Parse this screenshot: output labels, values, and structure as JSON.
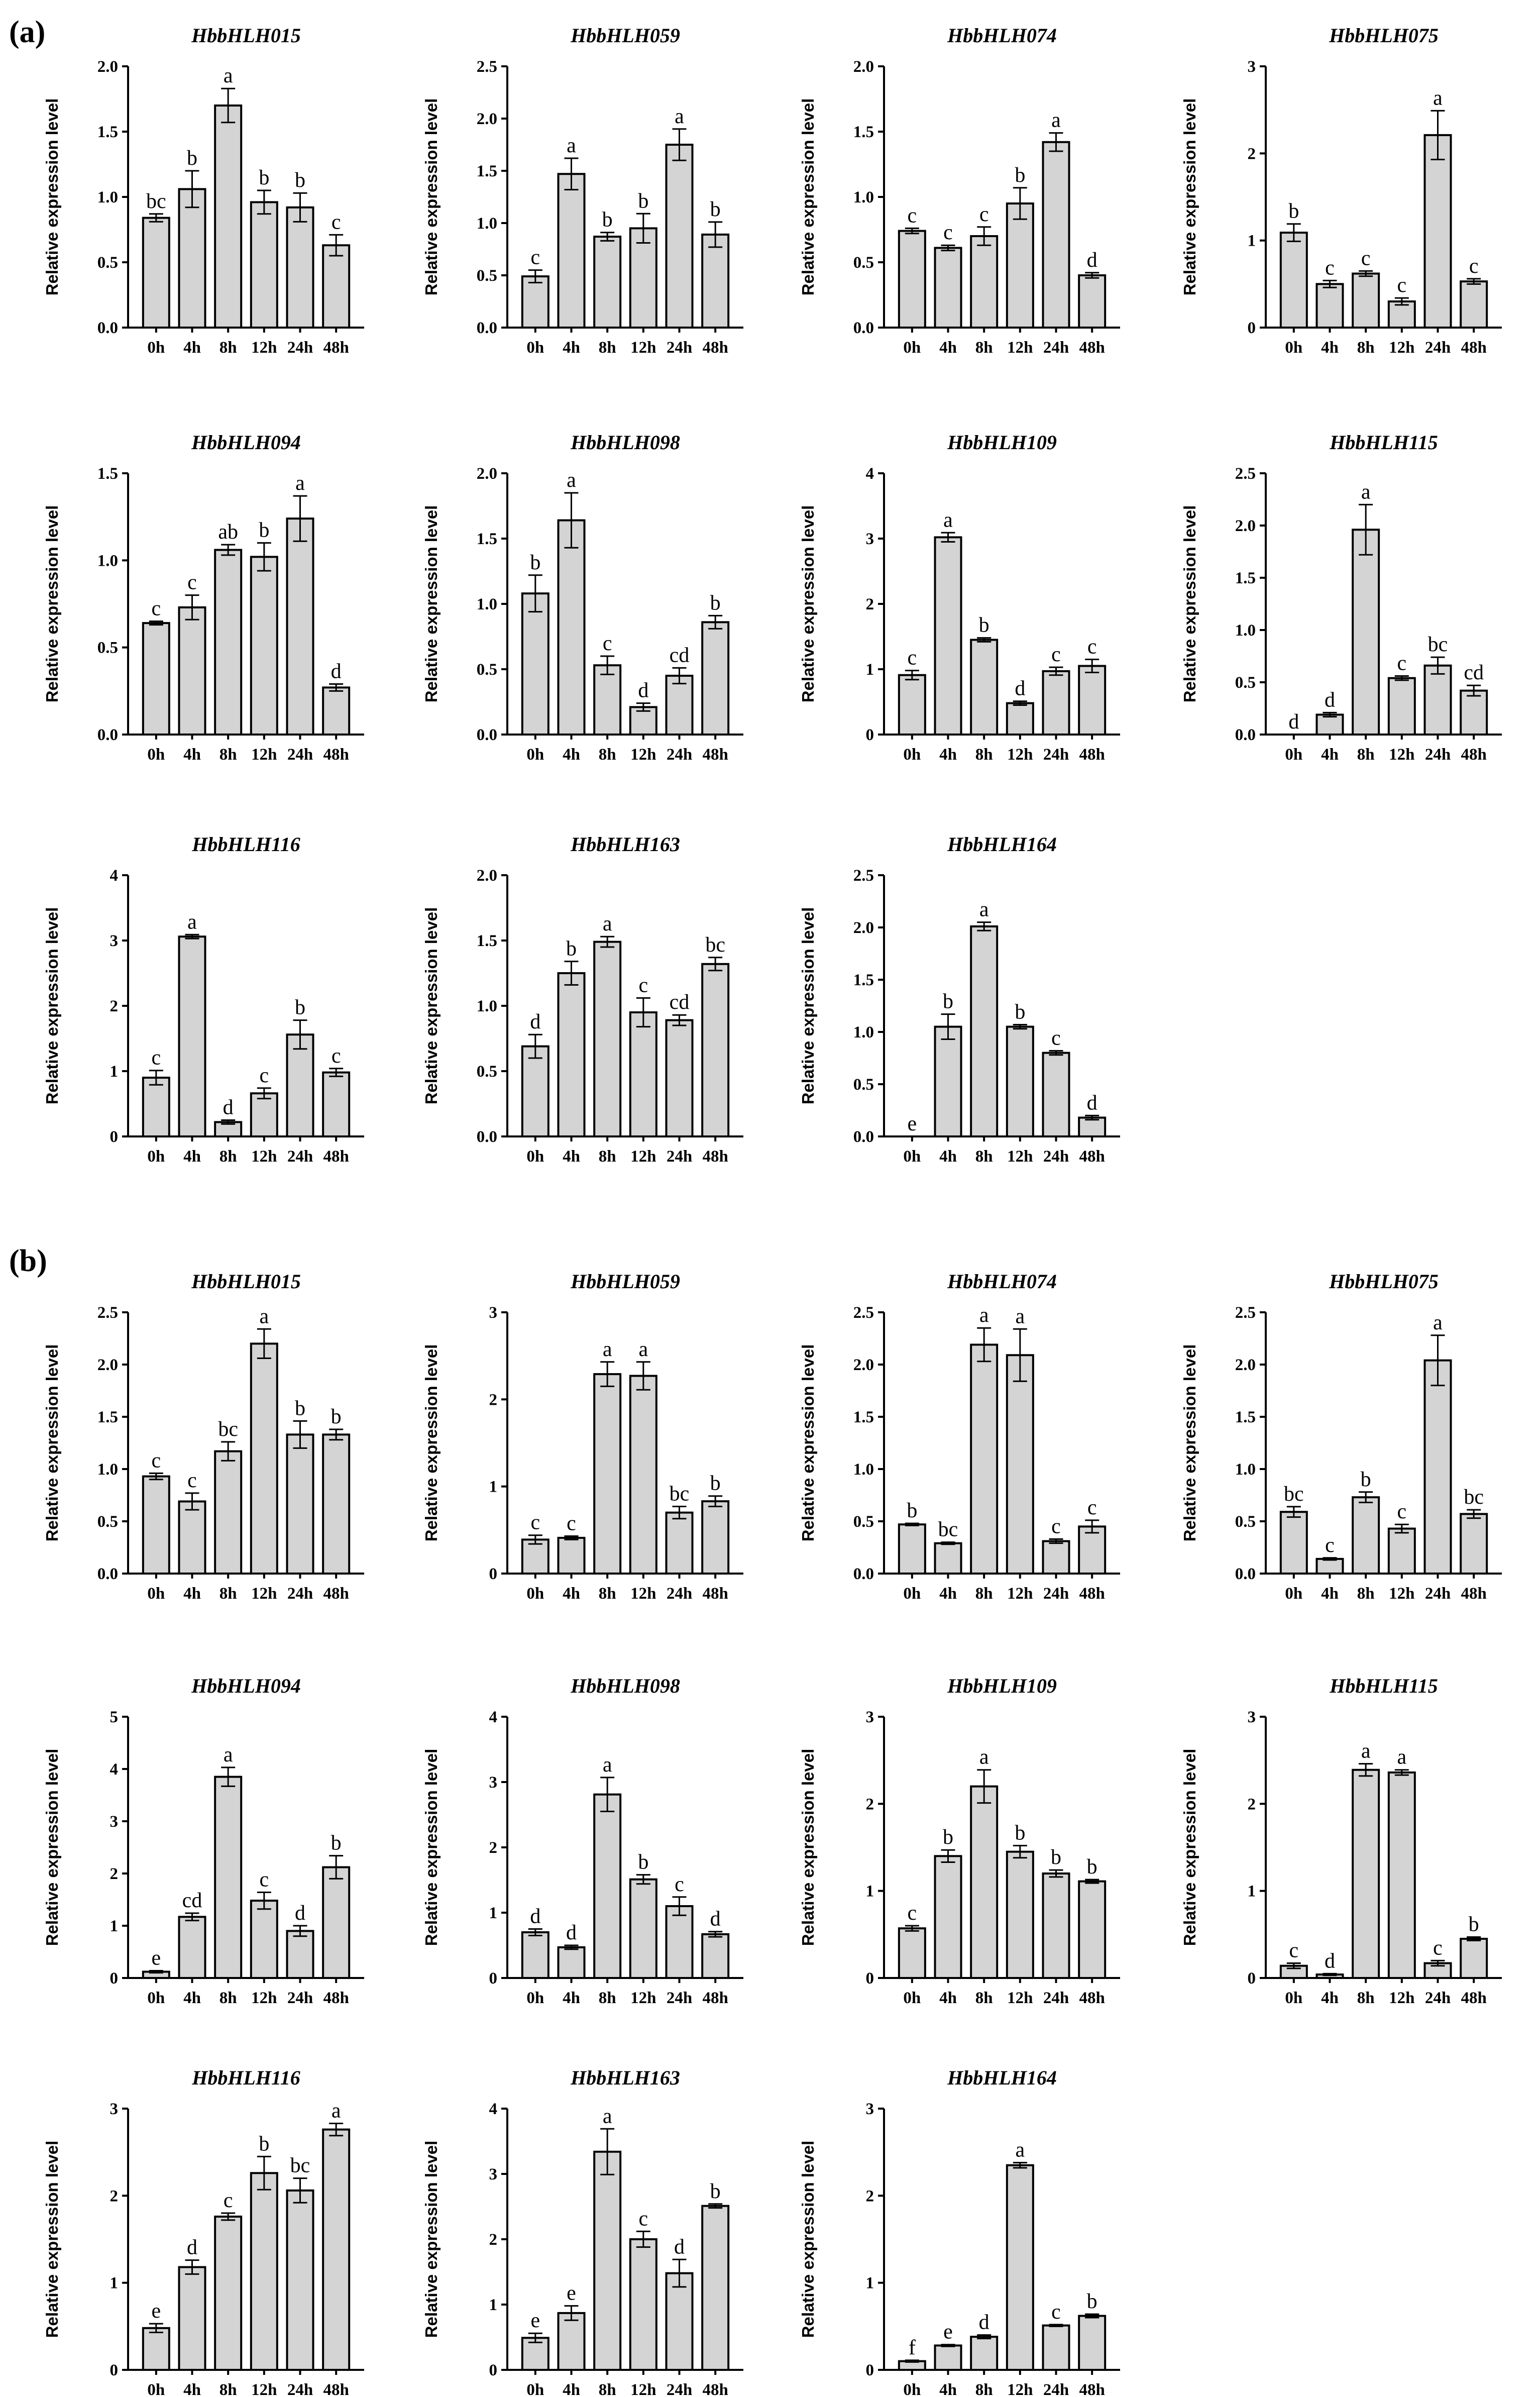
{
  "figure": {
    "panels": [
      {
        "label": "(a)"
      },
      {
        "label": "(b)"
      }
    ],
    "y_axis_title": "Relative expression level",
    "bar_color": "#d4d4d4",
    "categories": [
      "0h",
      "4h",
      "8h",
      "12h",
      "24h",
      "48h"
    ]
  },
  "chart_data": [
    {
      "panel": "(a)",
      "type": "bar",
      "title": "HbbHLH015",
      "ylabel": "Relative expression level",
      "ylim": [
        0,
        2.0
      ],
      "yticks": [
        "0.0",
        "0.5",
        "1.0",
        "1.5",
        "2.0"
      ],
      "categories": [
        "0h",
        "4h",
        "8h",
        "12h",
        "24h",
        "48h"
      ],
      "values": [
        0.84,
        1.06,
        1.7,
        0.96,
        0.92,
        0.63
      ],
      "errors": [
        0.03,
        0.14,
        0.13,
        0.09,
        0.11,
        0.08
      ],
      "labels": [
        "bc",
        "b",
        "a",
        "b",
        "b",
        "c"
      ]
    },
    {
      "panel": "(a)",
      "type": "bar",
      "title": "HbbHLH059",
      "ylabel": "Relative expression level",
      "ylim": [
        0,
        2.5
      ],
      "yticks": [
        "0.0",
        "0.5",
        "1.0",
        "1.5",
        "2.0",
        "2.5"
      ],
      "categories": [
        "0h",
        "4h",
        "8h",
        "12h",
        "24h",
        "48h"
      ],
      "values": [
        0.49,
        1.47,
        0.87,
        0.95,
        1.75,
        0.89
      ],
      "errors": [
        0.06,
        0.15,
        0.04,
        0.14,
        0.15,
        0.12
      ],
      "labels": [
        "c",
        "a",
        "b",
        "b",
        "a",
        "b"
      ]
    },
    {
      "panel": "(a)",
      "type": "bar",
      "title": "HbbHLH074",
      "ylabel": "Relative expression level",
      "ylim": [
        0,
        2.0
      ],
      "yticks": [
        "0.0",
        "0.5",
        "1.0",
        "1.5",
        "2.0"
      ],
      "categories": [
        "0h",
        "4h",
        "8h",
        "12h",
        "24h",
        "48h"
      ],
      "values": [
        0.74,
        0.61,
        0.7,
        0.95,
        1.42,
        0.4
      ],
      "errors": [
        0.02,
        0.02,
        0.07,
        0.12,
        0.07,
        0.02
      ],
      "labels": [
        "c",
        "c",
        "c",
        "b",
        "a",
        "d"
      ]
    },
    {
      "panel": "(a)",
      "type": "bar",
      "title": "HbbHLH075",
      "ylabel": "Relative expression level",
      "ylim": [
        0,
        3
      ],
      "yticks": [
        "0",
        "1",
        "2",
        "3"
      ],
      "categories": [
        "0h",
        "4h",
        "8h",
        "12h",
        "24h",
        "48h"
      ],
      "values": [
        1.09,
        0.5,
        0.62,
        0.3,
        2.21,
        0.53
      ],
      "errors": [
        0.1,
        0.04,
        0.03,
        0.04,
        0.28,
        0.03
      ],
      "labels": [
        "b",
        "c",
        "c",
        "c",
        "a",
        "c"
      ]
    },
    {
      "panel": "(a)",
      "type": "bar",
      "title": "HbbHLH094",
      "ylabel": "Relative expression level",
      "ylim": [
        0,
        1.5
      ],
      "yticks": [
        "0.0",
        "0.5",
        "1.0",
        "1.5"
      ],
      "categories": [
        "0h",
        "4h",
        "8h",
        "12h",
        "24h",
        "48h"
      ],
      "values": [
        0.64,
        0.73,
        1.06,
        1.02,
        1.24,
        0.27
      ],
      "errors": [
        0.01,
        0.07,
        0.03,
        0.08,
        0.13,
        0.02
      ],
      "labels": [
        "c",
        "c",
        "ab",
        "b",
        "a",
        "d"
      ]
    },
    {
      "panel": "(a)",
      "type": "bar",
      "title": "HbbHLH098",
      "ylabel": "Relative expression level",
      "ylim": [
        0,
        2.0
      ],
      "yticks": [
        "0.0",
        "0.5",
        "1.0",
        "1.5",
        "2.0"
      ],
      "categories": [
        "0h",
        "4h",
        "8h",
        "12h",
        "24h",
        "48h"
      ],
      "values": [
        1.08,
        1.64,
        0.53,
        0.21,
        0.45,
        0.86
      ],
      "errors": [
        0.14,
        0.21,
        0.07,
        0.03,
        0.06,
        0.05
      ],
      "labels": [
        "b",
        "a",
        "c",
        "d",
        "cd",
        "b"
      ]
    },
    {
      "panel": "(a)",
      "type": "bar",
      "title": "HbbHLH109",
      "ylabel": "Relative expression level",
      "ylim": [
        0,
        4
      ],
      "yticks": [
        "0",
        "1",
        "2",
        "3",
        "4"
      ],
      "categories": [
        "0h",
        "4h",
        "8h",
        "12h",
        "24h",
        "48h"
      ],
      "values": [
        0.91,
        3.02,
        1.45,
        0.48,
        0.97,
        1.05
      ],
      "errors": [
        0.07,
        0.07,
        0.03,
        0.03,
        0.06,
        0.1
      ],
      "labels": [
        "c",
        "a",
        "b",
        "d",
        "c",
        "c"
      ]
    },
    {
      "panel": "(a)",
      "type": "bar",
      "title": "HbbHLH115",
      "ylabel": "Relative expression level",
      "ylim": [
        0,
        2.5
      ],
      "yticks": [
        "0.0",
        "0.5",
        "1.0",
        "1.5",
        "2.0",
        "2.5"
      ],
      "categories": [
        "0h",
        "4h",
        "8h",
        "12h",
        "24h",
        "48h"
      ],
      "values": [
        0.0,
        0.19,
        1.96,
        0.54,
        0.66,
        0.42
      ],
      "errors": [
        0.0,
        0.02,
        0.24,
        0.02,
        0.08,
        0.05
      ],
      "labels": [
        "d",
        "d",
        "a",
        "c",
        "bc",
        "cd"
      ]
    },
    {
      "panel": "(a)",
      "type": "bar",
      "title": "HbbHLH116",
      "ylabel": "Relative expression level",
      "ylim": [
        0,
        4
      ],
      "yticks": [
        "0",
        "1",
        "2",
        "3",
        "4"
      ],
      "categories": [
        "0h",
        "4h",
        "8h",
        "12h",
        "24h",
        "48h"
      ],
      "values": [
        0.9,
        3.06,
        0.22,
        0.66,
        1.56,
        0.98
      ],
      "errors": [
        0.11,
        0.03,
        0.03,
        0.08,
        0.22,
        0.06
      ],
      "labels": [
        "c",
        "a",
        "d",
        "c",
        "b",
        "c"
      ]
    },
    {
      "panel": "(a)",
      "type": "bar",
      "title": "HbbHLH163",
      "ylabel": "Relative expression level",
      "ylim": [
        0,
        2.0
      ],
      "yticks": [
        "0.0",
        "0.5",
        "1.0",
        "1.5",
        "2.0"
      ],
      "categories": [
        "0h",
        "4h",
        "8h",
        "12h",
        "24h",
        "48h"
      ],
      "values": [
        0.69,
        1.25,
        1.49,
        0.95,
        0.89,
        1.32
      ],
      "errors": [
        0.09,
        0.09,
        0.04,
        0.11,
        0.04,
        0.05
      ],
      "labels": [
        "d",
        "b",
        "a",
        "c",
        "cd",
        "bc"
      ]
    },
    {
      "panel": "(a)",
      "type": "bar",
      "title": "HbbHLH164",
      "ylabel": "Relative expression level",
      "ylim": [
        0,
        2.5
      ],
      "yticks": [
        "0.0",
        "0.5",
        "1.0",
        "1.5",
        "2.0",
        "2.5"
      ],
      "categories": [
        "0h",
        "4h",
        "8h",
        "12h",
        "24h",
        "48h"
      ],
      "values": [
        0.0,
        1.05,
        2.01,
        1.05,
        0.8,
        0.18
      ],
      "errors": [
        0.0,
        0.12,
        0.04,
        0.02,
        0.02,
        0.02
      ],
      "labels": [
        "e",
        "b",
        "a",
        "b",
        "c",
        "d"
      ]
    },
    {
      "panel": "(b)",
      "type": "bar",
      "title": "HbbHLH015",
      "ylabel": "Relative expression level",
      "ylim": [
        0,
        2.5
      ],
      "yticks": [
        "0.0",
        "0.5",
        "1.0",
        "1.5",
        "2.0",
        "2.5"
      ],
      "categories": [
        "0h",
        "4h",
        "8h",
        "12h",
        "24h",
        "48h"
      ],
      "values": [
        0.93,
        0.69,
        1.17,
        2.2,
        1.33,
        1.33
      ],
      "errors": [
        0.03,
        0.08,
        0.09,
        0.14,
        0.13,
        0.05
      ],
      "labels": [
        "c",
        "c",
        "bc",
        "a",
        "b",
        "b"
      ]
    },
    {
      "panel": "(b)",
      "type": "bar",
      "title": "HbbHLH059",
      "ylabel": "Relative expression level",
      "ylim": [
        0,
        3
      ],
      "yticks": [
        "0",
        "1",
        "2",
        "3"
      ],
      "categories": [
        "0h",
        "4h",
        "8h",
        "12h",
        "24h",
        "48h"
      ],
      "values": [
        0.39,
        0.41,
        2.29,
        2.27,
        0.7,
        0.83
      ],
      "errors": [
        0.05,
        0.02,
        0.14,
        0.16,
        0.07,
        0.06
      ],
      "labels": [
        "c",
        "c",
        "a",
        "a",
        "bc",
        "b"
      ]
    },
    {
      "panel": "(b)",
      "type": "bar",
      "title": "HbbHLH074",
      "ylabel": "Relative expression level",
      "ylim": [
        0,
        2.5
      ],
      "yticks": [
        "0.0",
        "0.5",
        "1.0",
        "1.5",
        "2.0",
        "2.5"
      ],
      "categories": [
        "0h",
        "4h",
        "8h",
        "12h",
        "24h",
        "48h"
      ],
      "values": [
        0.47,
        0.29,
        2.19,
        2.09,
        0.31,
        0.45
      ],
      "errors": [
        0.01,
        0.01,
        0.16,
        0.25,
        0.02,
        0.06
      ],
      "labels": [
        "b",
        "bc",
        "a",
        "a",
        "c",
        "c"
      ]
    },
    {
      "panel": "(b)",
      "type": "bar",
      "title": "HbbHLH075",
      "ylabel": "Relative expression level",
      "ylim": [
        0,
        2.5
      ],
      "yticks": [
        "0.0",
        "0.5",
        "1.0",
        "1.5",
        "2.0",
        "2.5"
      ],
      "categories": [
        "0h",
        "4h",
        "8h",
        "12h",
        "24h",
        "48h"
      ],
      "values": [
        0.59,
        0.14,
        0.73,
        0.43,
        2.04,
        0.57
      ],
      "errors": [
        0.05,
        0.01,
        0.05,
        0.04,
        0.24,
        0.04
      ],
      "labels": [
        "bc",
        "c",
        "b",
        "c",
        "a",
        "bc"
      ]
    },
    {
      "panel": "(b)",
      "type": "bar",
      "title": "HbbHLH094",
      "ylabel": "Relative expression level",
      "ylim": [
        0,
        5
      ],
      "yticks": [
        "0",
        "1",
        "2",
        "3",
        "4",
        "5"
      ],
      "categories": [
        "0h",
        "4h",
        "8h",
        "12h",
        "24h",
        "48h"
      ],
      "values": [
        0.12,
        1.17,
        3.85,
        1.48,
        0.9,
        2.12
      ],
      "errors": [
        0.02,
        0.07,
        0.18,
        0.16,
        0.1,
        0.22
      ],
      "labels": [
        "e",
        "cd",
        "a",
        "c",
        "d",
        "b"
      ]
    },
    {
      "panel": "(b)",
      "type": "bar",
      "title": "HbbHLH098",
      "ylabel": "Relative expression level",
      "ylim": [
        0,
        4
      ],
      "yticks": [
        "0",
        "1",
        "2",
        "3",
        "4"
      ],
      "categories": [
        "0h",
        "4h",
        "8h",
        "12h",
        "24h",
        "48h"
      ],
      "values": [
        0.7,
        0.47,
        2.81,
        1.51,
        1.1,
        0.67
      ],
      "errors": [
        0.05,
        0.03,
        0.26,
        0.07,
        0.14,
        0.04
      ],
      "labels": [
        "d",
        "d",
        "a",
        "b",
        "c",
        "d"
      ]
    },
    {
      "panel": "(b)",
      "type": "bar",
      "title": "HbbHLH109",
      "ylabel": "Relative expression level",
      "ylim": [
        0,
        3
      ],
      "yticks": [
        "0",
        "1",
        "2",
        "3"
      ],
      "categories": [
        "0h",
        "4h",
        "8h",
        "12h",
        "24h",
        "48h"
      ],
      "values": [
        0.57,
        1.4,
        2.2,
        1.45,
        1.2,
        1.11
      ],
      "errors": [
        0.03,
        0.07,
        0.19,
        0.07,
        0.04,
        0.02
      ],
      "labels": [
        "c",
        "b",
        "a",
        "b",
        "b",
        "b"
      ]
    },
    {
      "panel": "(b)",
      "type": "bar",
      "title": "HbbHLH115",
      "ylabel": "Relative expression level",
      "ylim": [
        0,
        3
      ],
      "yticks": [
        "0",
        "1",
        "2",
        "3"
      ],
      "categories": [
        "0h",
        "4h",
        "8h",
        "12h",
        "24h",
        "48h"
      ],
      "values": [
        0.14,
        0.04,
        2.39,
        2.36,
        0.17,
        0.45
      ],
      "errors": [
        0.03,
        0.01,
        0.07,
        0.03,
        0.03,
        0.02
      ],
      "labels": [
        "c",
        "d",
        "a",
        "a",
        "c",
        "b"
      ]
    },
    {
      "panel": "(b)",
      "type": "bar",
      "title": "HbbHLH116",
      "ylabel": "Relative expression level",
      "ylim": [
        0,
        3
      ],
      "yticks": [
        "0",
        "1",
        "2",
        "3"
      ],
      "categories": [
        "0h",
        "4h",
        "8h",
        "12h",
        "24h",
        "48h"
      ],
      "values": [
        0.48,
        1.18,
        1.76,
        2.26,
        2.06,
        2.76
      ],
      "errors": [
        0.05,
        0.08,
        0.04,
        0.19,
        0.14,
        0.07
      ],
      "labels": [
        "e",
        "d",
        "c",
        "b",
        "bc",
        "a"
      ]
    },
    {
      "panel": "(b)",
      "type": "bar",
      "title": "HbbHLH163",
      "ylabel": "Relative expression level",
      "ylim": [
        0,
        4
      ],
      "yticks": [
        "0",
        "1",
        "2",
        "3",
        "4"
      ],
      "categories": [
        "0h",
        "4h",
        "8h",
        "12h",
        "24h",
        "48h"
      ],
      "values": [
        0.49,
        0.87,
        3.34,
        2.0,
        1.48,
        2.51
      ],
      "errors": [
        0.07,
        0.11,
        0.35,
        0.12,
        0.21,
        0.03
      ],
      "labels": [
        "e",
        "e",
        "a",
        "c",
        "d",
        "b"
      ]
    },
    {
      "panel": "(b)",
      "type": "bar",
      "title": "HbbHLH164",
      "ylabel": "Relative expression level",
      "ylim": [
        0,
        3
      ],
      "yticks": [
        "0",
        "1",
        "2",
        "3"
      ],
      "categories": [
        "0h",
        "4h",
        "8h",
        "12h",
        "24h",
        "48h"
      ],
      "values": [
        0.1,
        0.28,
        0.38,
        2.35,
        0.51,
        0.62
      ],
      "errors": [
        0.01,
        0.01,
        0.02,
        0.03,
        0.01,
        0.02
      ],
      "labels": [
        "f",
        "e",
        "d",
        "a",
        "c",
        "b"
      ]
    }
  ]
}
